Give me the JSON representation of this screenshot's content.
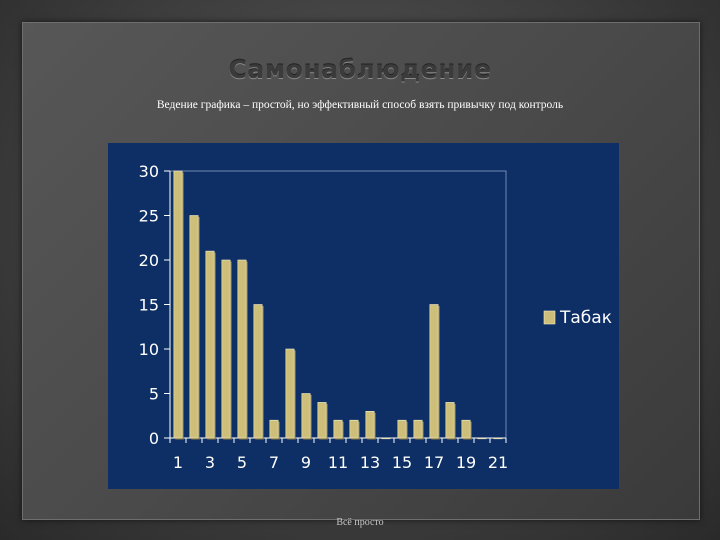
{
  "title": "Самонаблюдение",
  "subtitle": "Ведение графика – простой, но эффективный способ взять привычку под контроль",
  "footer": "Всё просто",
  "chart_data": {
    "type": "bar",
    "categories": [
      "1",
      "2",
      "3",
      "4",
      "5",
      "6",
      "7",
      "8",
      "9",
      "10",
      "11",
      "12",
      "13",
      "14",
      "15",
      "16",
      "17",
      "18",
      "19",
      "20",
      "21"
    ],
    "tick_labels": [
      "1",
      "3",
      "5",
      "7",
      "9",
      "11",
      "13",
      "15",
      "17",
      "19",
      "21"
    ],
    "series": [
      {
        "name": "Табак",
        "values": [
          30,
          25,
          21,
          20,
          20,
          15,
          2,
          10,
          5,
          4,
          2,
          2,
          3,
          0,
          2,
          2,
          15,
          4,
          2,
          0,
          0
        ]
      }
    ],
    "yticks": [
      0,
      5,
      10,
      15,
      20,
      25,
      30
    ],
    "ylim": [
      0,
      30
    ],
    "legend": "right",
    "grid": false,
    "bar_color": "#cdbf7a",
    "background_color": "#0e2f66"
  }
}
